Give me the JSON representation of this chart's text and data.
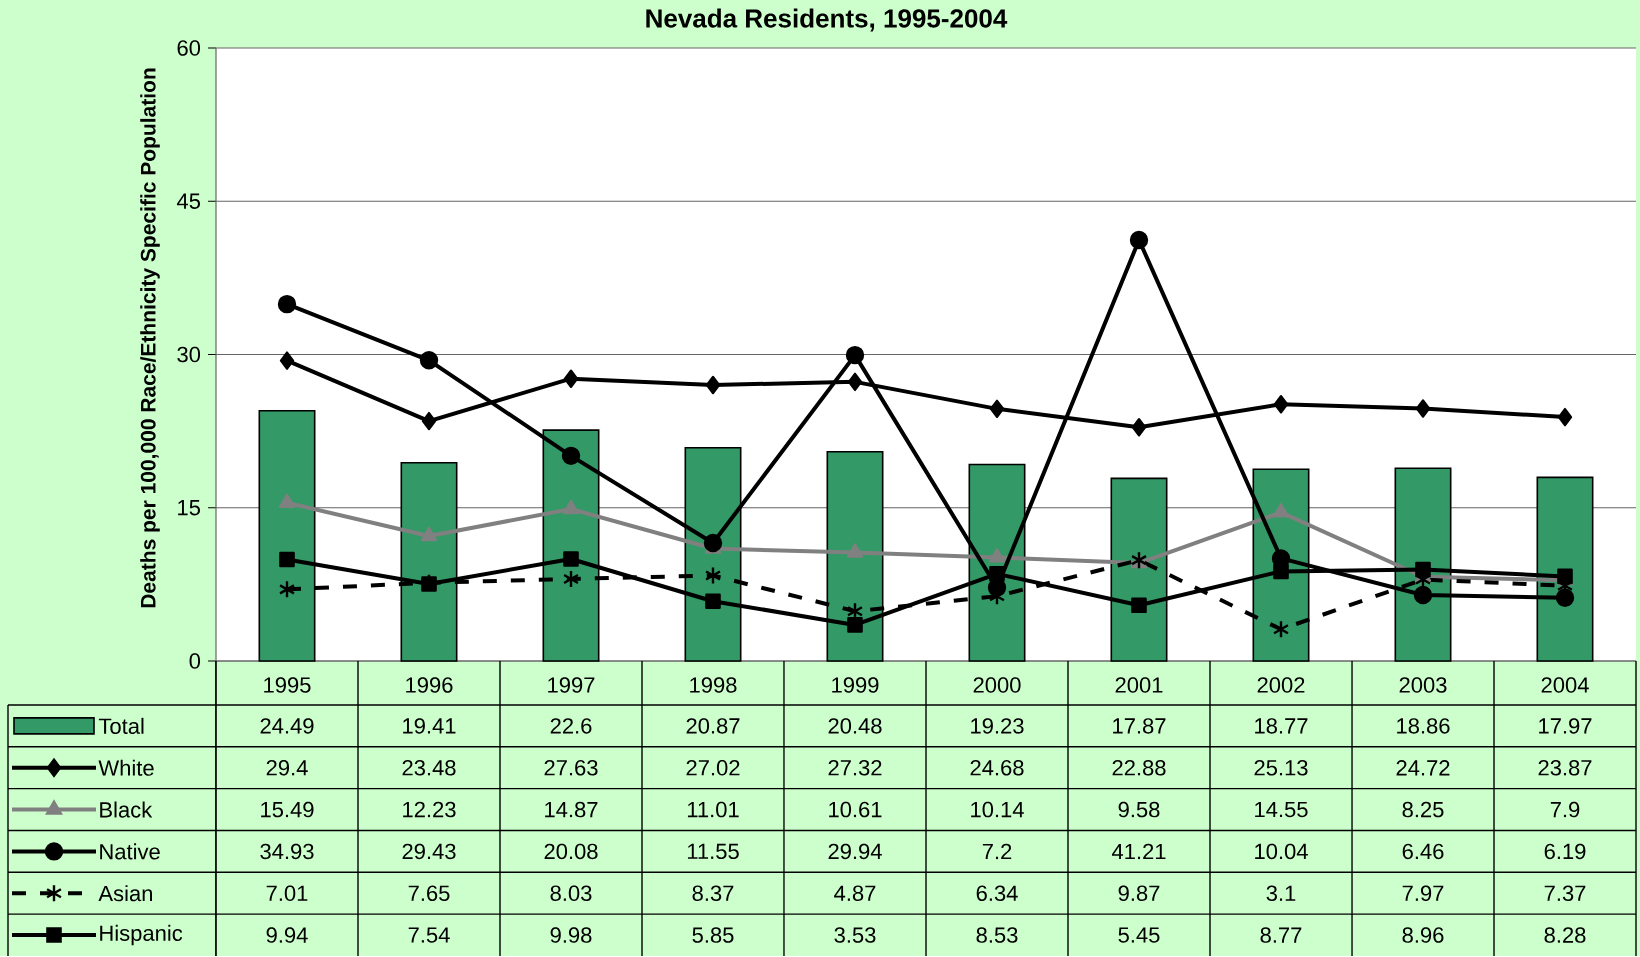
{
  "chart_data": {
    "type": "bar",
    "title": "Nevada Residents, 1995-2004",
    "ylabel": "Deaths per 100,000 Race/Ethnicity Specific Population",
    "categories": [
      "1995",
      "1996",
      "1997",
      "1998",
      "1999",
      "2000",
      "2001",
      "2002",
      "2003",
      "2004"
    ],
    "series": [
      {
        "name": "Total",
        "color": "#339966",
        "values": [
          24.49,
          19.41,
          22.6,
          20.87,
          20.48,
          19.23,
          17.87,
          18.77,
          18.86,
          17.97
        ]
      },
      {
        "name": "White",
        "type": "line",
        "color": "#000000",
        "marker": "diamond",
        "line_style": "solid",
        "values": [
          29.4,
          23.48,
          27.63,
          27.02,
          27.32,
          24.68,
          22.88,
          25.13,
          24.72,
          23.87
        ]
      },
      {
        "name": "Black",
        "type": "line",
        "color": "#808080",
        "marker": "triangle",
        "line_style": "solid",
        "values": [
          15.49,
          12.23,
          14.87,
          11.01,
          10.61,
          10.14,
          9.58,
          14.55,
          8.25,
          7.9
        ]
      },
      {
        "name": "Native",
        "type": "line",
        "color": "#000000",
        "marker": "circle",
        "line_style": "solid",
        "values": [
          34.93,
          29.43,
          20.08,
          11.55,
          29.94,
          7.2,
          41.21,
          10.04,
          6.46,
          6.19
        ]
      },
      {
        "name": "Asian",
        "type": "line",
        "color": "#000000",
        "marker": "cross",
        "line_style": "dashed",
        "values": [
          7.01,
          7.65,
          8.03,
          8.37,
          4.87,
          6.34,
          9.87,
          3.1,
          7.97,
          7.37
        ]
      },
      {
        "name": "Hispanic",
        "type": "line",
        "color": "#000000",
        "marker": "square",
        "line_style": "solid",
        "values": [
          9.94,
          7.54,
          9.98,
          5.85,
          3.53,
          8.53,
          5.45,
          8.77,
          8.96,
          8.28
        ]
      }
    ],
    "ylim": [
      0,
      60
    ],
    "yticks": [
      0,
      15,
      30,
      45,
      60
    ],
    "grid": "y",
    "legend": "bottom",
    "data_labels": true
  }
}
